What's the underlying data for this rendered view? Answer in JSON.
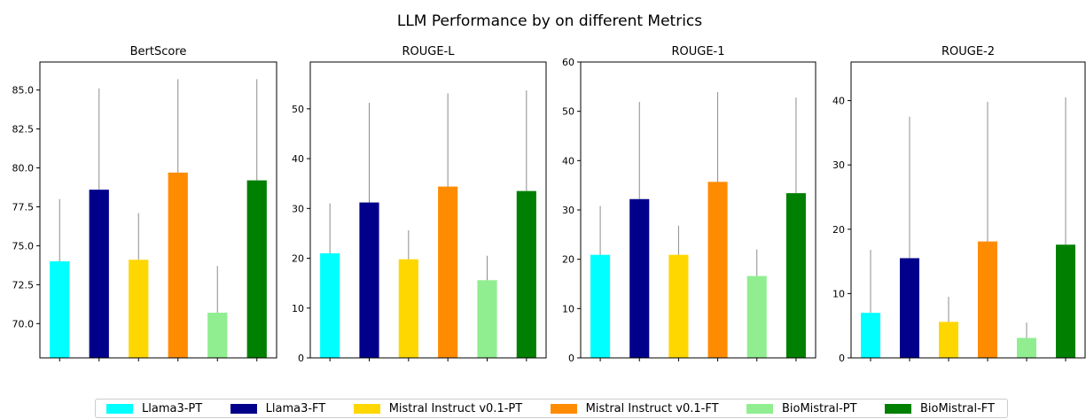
{
  "title": "LLM Performance by on different Metrics",
  "colors": {
    "Llama3-PT": "#00ffff",
    "Llama3-FT": "#00008b",
    "Mistral Instruct v0.1-PT": "#ffd700",
    "Mistral Instruct v0.1-FT": "#ff8c00",
    "BioMistral-PT": "#90ee90",
    "BioMistral-FT": "#008000"
  },
  "legend": [
    "Llama3-PT",
    "Llama3-FT",
    "Mistral Instruct v0.1-PT",
    "Mistral Instruct v0.1-FT",
    "BioMistral-PT",
    "BioMistral-FT"
  ],
  "chart_data": [
    {
      "type": "bar",
      "title": "BertScore",
      "categories": [
        "Llama3-PT",
        "Llama3-FT",
        "Mistral Instruct v0.1-PT",
        "Mistral Instruct v0.1-FT",
        "BioMistral-PT",
        "BioMistral-FT"
      ],
      "values": [
        74.0,
        78.6,
        74.1,
        79.7,
        70.7,
        79.2
      ],
      "error_upper": [
        78.0,
        85.1,
        77.1,
        85.7,
        73.7,
        85.7
      ],
      "ylim": [
        67.8,
        86.8
      ],
      "yticks": [
        70.0,
        72.5,
        75.0,
        77.5,
        80.0,
        82.5,
        85.0
      ],
      "ytick_labels": [
        "70.0",
        "72.5",
        "75.0",
        "77.5",
        "80.0",
        "82.5",
        "85.0"
      ]
    },
    {
      "type": "bar",
      "title": "ROUGE-L",
      "categories": [
        "Llama3-PT",
        "Llama3-FT",
        "Mistral Instruct v0.1-PT",
        "Mistral Instruct v0.1-FT",
        "BioMistral-PT",
        "BioMistral-FT"
      ],
      "values": [
        21.0,
        31.2,
        19.8,
        34.4,
        15.6,
        33.5
      ],
      "error_upper": [
        31.0,
        51.2,
        25.6,
        53.1,
        20.5,
        53.7
      ],
      "ylim": [
        0,
        59.4
      ],
      "yticks": [
        0,
        10,
        20,
        30,
        40,
        50
      ],
      "ytick_labels": [
        "0",
        "10",
        "20",
        "30",
        "40",
        "50"
      ]
    },
    {
      "type": "bar",
      "title": "ROUGE-1",
      "categories": [
        "Llama3-PT",
        "Llama3-FT",
        "Mistral Instruct v0.1-PT",
        "Mistral Instruct v0.1-FT",
        "BioMistral-PT",
        "BioMistral-FT"
      ],
      "values": [
        20.9,
        32.2,
        20.9,
        35.7,
        16.6,
        33.4
      ],
      "error_upper": [
        30.8,
        51.9,
        26.8,
        53.9,
        22.0,
        52.8
      ],
      "ylim": [
        0,
        60
      ],
      "yticks": [
        0,
        10,
        20,
        30,
        40,
        50,
        60
      ],
      "ytick_labels": [
        "0",
        "10",
        "20",
        "30",
        "40",
        "50",
        "60"
      ]
    },
    {
      "type": "bar",
      "title": "ROUGE-2",
      "categories": [
        "Llama3-PT",
        "Llama3-FT",
        "Mistral Instruct v0.1-PT",
        "Mistral Instruct v0.1-FT",
        "BioMistral-PT",
        "BioMistral-FT"
      ],
      "values": [
        7.0,
        15.5,
        5.6,
        18.1,
        3.1,
        17.6
      ],
      "error_upper": [
        16.8,
        37.5,
        9.5,
        39.8,
        5.5,
        40.5
      ],
      "ylim": [
        0,
        46
      ],
      "yticks": [
        0,
        10,
        20,
        30,
        40
      ],
      "ytick_labels": [
        "0",
        "10",
        "20",
        "30",
        "40"
      ]
    }
  ]
}
